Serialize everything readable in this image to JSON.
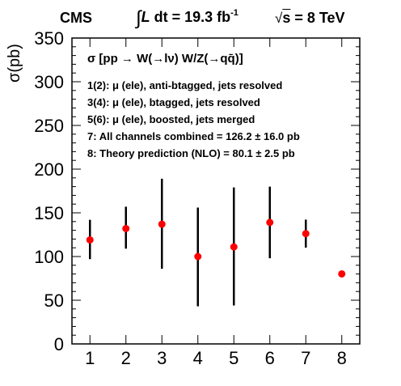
{
  "header": {
    "experiment": "CMS",
    "luminosity_prefix": "∫",
    "luminosity_symbol": "L",
    "luminosity_text": " dt = 19.3 fb",
    "luminosity_exponent": "-1",
    "energy_sqrt": "√",
    "energy_s": "s",
    "energy_text": " = 8 TeV"
  },
  "legend": {
    "title": "σ [pp → W(→lν) W/Z(→qq̄)]",
    "lines": [
      "1(2): μ (ele), anti-btagged, jets resolved",
      "3(4): μ (ele), btagged, jets resolved",
      "5(6): μ (ele), boosted, jets merged",
      "7: All channels combined  = 126.2 ± 16.0 pb",
      "8: Theory prediction (NLO) = 80.1 ± 2.5 pb"
    ]
  },
  "chart_data": {
    "type": "scatter",
    "title": "",
    "xlabel": "",
    "ylabel": "σ(pb)",
    "xlim": [
      0.5,
      8.5
    ],
    "ylim": [
      0,
      350
    ],
    "x_ticks": [
      "1",
      "2",
      "3",
      "4",
      "5",
      "6",
      "7",
      "8"
    ],
    "y_ticks": [
      "0",
      "50",
      "100",
      "150",
      "200",
      "250",
      "300",
      "350"
    ],
    "grid": false,
    "marker_color": "#ff0000",
    "errorbar_color": "#000000",
    "points": [
      {
        "x": 1,
        "y": 119,
        "err_low": 22,
        "err_high": 23
      },
      {
        "x": 2,
        "y": 132,
        "err_low": 23,
        "err_high": 25
      },
      {
        "x": 3,
        "y": 137,
        "err_low": 51,
        "err_high": 52
      },
      {
        "x": 4,
        "y": 100,
        "err_low": 57,
        "err_high": 56
      },
      {
        "x": 5,
        "y": 111,
        "err_low": 67,
        "err_high": 68
      },
      {
        "x": 6,
        "y": 139,
        "err_low": 41,
        "err_high": 41
      },
      {
        "x": 7,
        "y": 126.2,
        "err_low": 16.0,
        "err_high": 16.0
      },
      {
        "x": 8,
        "y": 80.1,
        "err_low": 2.5,
        "err_high": 2.5
      }
    ]
  }
}
